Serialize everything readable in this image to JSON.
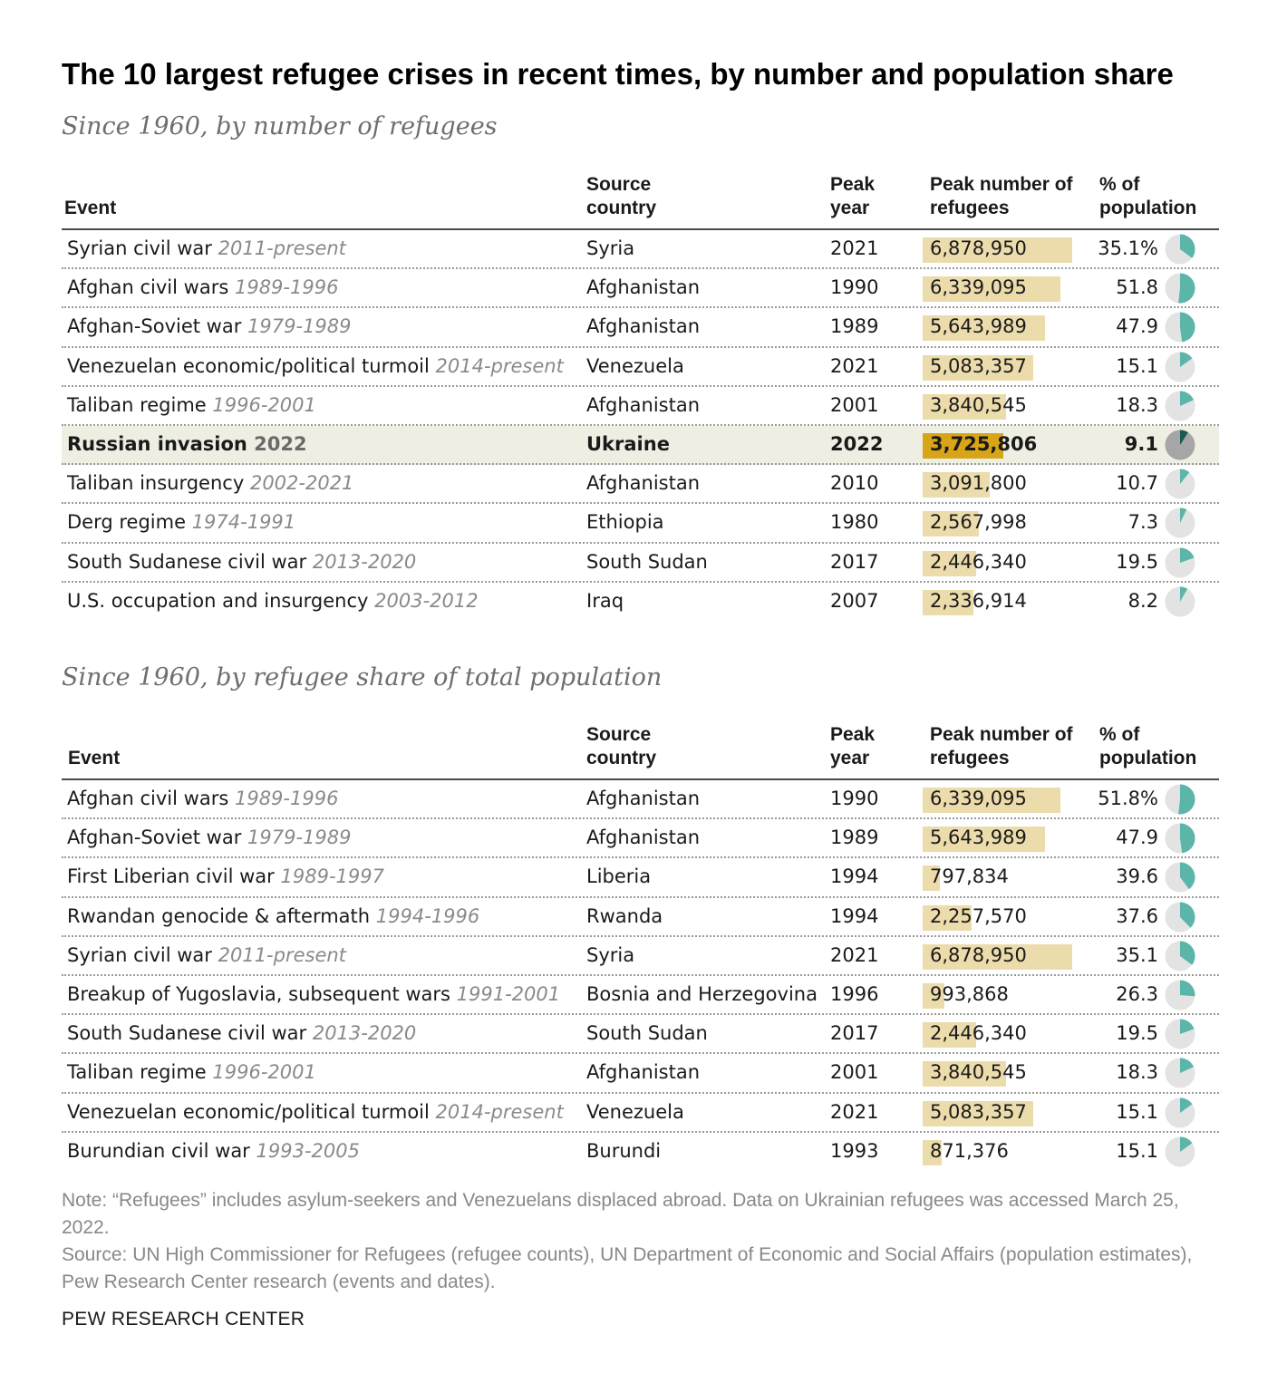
{
  "title": "The 10 largest refugee crises in recent times, by number and population share",
  "headers": {
    "event": "Event",
    "country": "Source country",
    "year": "Peak year",
    "number": "Peak number of refugees",
    "pct": "% of population"
  },
  "colors": {
    "bar": "#ecdcac",
    "bar_highlight": "#d9a518",
    "pie_fill": "#5bb5a8",
    "pie_fill_highlight": "#1a5a50",
    "pie_bg": "#e3e3e3",
    "pie_bg_highlight": "#a6a6a6",
    "row_highlight": "#efeee3"
  },
  "note": "Note: “Refugees” includes asylum-seekers and Venezuelans displaced abroad. Data on Ukrainian refugees was accessed March 25, 2022.",
  "source": "Source: UN High Commissioner for Refugees (refugee counts), UN Department of Economic and Social Affairs (population estimates), Pew Research Center research (events and dates).",
  "brand": "PEW RESEARCH CENTER",
  "chart_data": [
    {
      "type": "table",
      "subtitle": "Since 1960, by number of refugees",
      "rows": [
        {
          "event": "Syrian civil war",
          "dates": "2011-present",
          "country": "Syria",
          "year": "2021",
          "refugees": 6878950,
          "refugees_label": "6,878,950",
          "pct": 35.1,
          "pct_label": "35.1%"
        },
        {
          "event": "Afghan civil wars",
          "dates": "1989-1996",
          "country": "Afghanistan",
          "year": "1990",
          "refugees": 6339095,
          "refugees_label": "6,339,095",
          "pct": 51.8,
          "pct_label": "51.8"
        },
        {
          "event": "Afghan-Soviet war",
          "dates": "1979-1989",
          "country": "Afghanistan",
          "year": "1989",
          "refugees": 5643989,
          "refugees_label": "5,643,989",
          "pct": 47.9,
          "pct_label": "47.9"
        },
        {
          "event": "Venezuelan economic/political turmoil",
          "dates": "2014-present",
          "country": "Venezuela",
          "year": "2021",
          "refugees": 5083357,
          "refugees_label": "5,083,357",
          "pct": 15.1,
          "pct_label": "15.1"
        },
        {
          "event": "Taliban regime",
          "dates": "1996-2001",
          "country": "Afghanistan",
          "year": "2001",
          "refugees": 3840545,
          "refugees_label": "3,840,545",
          "pct": 18.3,
          "pct_label": "18.3"
        },
        {
          "event": "Russian invasion",
          "dates": "2022",
          "country": "Ukraine",
          "year": "2022",
          "refugees": 3725806,
          "refugees_label": "3,725,806",
          "pct": 9.1,
          "pct_label": "9.1",
          "highlight": true
        },
        {
          "event": "Taliban insurgency",
          "dates": "2002-2021",
          "country": "Afghanistan",
          "year": "2010",
          "refugees": 3091800,
          "refugees_label": "3,091,800",
          "pct": 10.7,
          "pct_label": "10.7"
        },
        {
          "event": "Derg regime",
          "dates": "1974-1991",
          "country": "Ethiopia",
          "year": "1980",
          "refugees": 2567998,
          "refugees_label": "2,567,998",
          "pct": 7.3,
          "pct_label": "7.3"
        },
        {
          "event": "South Sudanese civil war",
          "dates": "2013-2020",
          "country": "South Sudan",
          "year": "2017",
          "refugees": 2446340,
          "refugees_label": "2,446,340",
          "pct": 19.5,
          "pct_label": "19.5"
        },
        {
          "event": "U.S. occupation and insurgency",
          "dates": "2003-2012",
          "country": "Iraq",
          "year": "2007",
          "refugees": 2336914,
          "refugees_label": "2,336,914",
          "pct": 8.2,
          "pct_label": "8.2"
        }
      ]
    },
    {
      "type": "table",
      "subtitle": "Since 1960, by refugee share of total population",
      "rows": [
        {
          "event": "Afghan civil wars",
          "dates": "1989-1996",
          "country": "Afghanistan",
          "year": "1990",
          "refugees": 6339095,
          "refugees_label": "6,339,095",
          "pct": 51.8,
          "pct_label": "51.8%"
        },
        {
          "event": "Afghan-Soviet war",
          "dates": "1979-1989",
          "country": "Afghanistan",
          "year": "1989",
          "refugees": 5643989,
          "refugees_label": "5,643,989",
          "pct": 47.9,
          "pct_label": "47.9"
        },
        {
          "event": "First Liberian civil war",
          "dates": "1989-1997",
          "country": "Liberia",
          "year": "1994",
          "refugees": 797834,
          "refugees_label": "797,834",
          "pct": 39.6,
          "pct_label": "39.6"
        },
        {
          "event": "Rwandan genocide & aftermath",
          "dates": "1994-1996",
          "country": "Rwanda",
          "year": "1994",
          "refugees": 2257570,
          "refugees_label": "2,257,570",
          "pct": 37.6,
          "pct_label": "37.6"
        },
        {
          "event": "Syrian civil war",
          "dates": "2011-present",
          "country": "Syria",
          "year": "2021",
          "refugees": 6878950,
          "refugees_label": "6,878,950",
          "pct": 35.1,
          "pct_label": "35.1"
        },
        {
          "event": "Breakup of Yugoslavia, subsequent wars",
          "dates": "1991-2001",
          "country": "Bosnia and Herzegovina",
          "year": "1996",
          "refugees": 993868,
          "refugees_label": "993,868",
          "pct": 26.3,
          "pct_label": "26.3"
        },
        {
          "event": "South Sudanese civil war",
          "dates": "2013-2020",
          "country": "South Sudan",
          "year": "2017",
          "refugees": 2446340,
          "refugees_label": "2,446,340",
          "pct": 19.5,
          "pct_label": "19.5"
        },
        {
          "event": "Taliban regime",
          "dates": "1996-2001",
          "country": "Afghanistan",
          "year": "2001",
          "refugees": 3840545,
          "refugees_label": "3,840,545",
          "pct": 18.3,
          "pct_label": "18.3"
        },
        {
          "event": "Venezuelan economic/political turmoil",
          "dates": "2014-present",
          "country": "Venezuela",
          "year": "2021",
          "refugees": 5083357,
          "refugees_label": "5,083,357",
          "pct": 15.1,
          "pct_label": "15.1"
        },
        {
          "event": "Burundian civil war",
          "dates": "1993-2005",
          "country": "Burundi",
          "year": "1993",
          "refugees": 871376,
          "refugees_label": "871,376",
          "pct": 15.1,
          "pct_label": "15.1"
        }
      ]
    }
  ]
}
